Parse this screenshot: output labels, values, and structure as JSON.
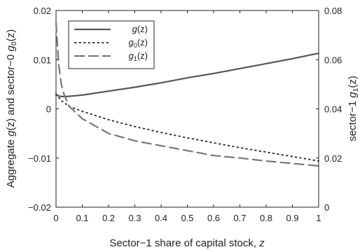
{
  "chart_data": {
    "type": "line",
    "xlabel": "Sector−1 share of capital stock, z",
    "ylabel_left": "Aggregate g(z) and sector−0 g0(z)",
    "ylabel_right": "sector−1 g1(z)",
    "xlim": [
      0,
      1
    ],
    "ylim_left": [
      -0.02,
      0.02
    ],
    "ylim_right": [
      0,
      0.08
    ],
    "grid": false,
    "legend_position": "top-left",
    "x_ticks": [
      "0",
      "0.1",
      "0.2",
      "0.3",
      "0.4",
      "0.5",
      "0.6",
      "0.7",
      "0.8",
      "0.9",
      "1"
    ],
    "y_ticks_left": [
      "−0.02",
      "−0.01",
      "0",
      "0.01",
      "0.02"
    ],
    "y_ticks_right": [
      "0",
      "0.02",
      "0.04",
      "0.06",
      "0.08"
    ],
    "series": [
      {
        "name": "g(z)",
        "axis": "left",
        "style": "solid",
        "color": "#555555",
        "x": [
          0,
          0.02,
          0.04,
          0.06,
          0.1,
          0.2,
          0.3,
          0.4,
          0.5,
          0.6,
          0.7,
          0.8,
          0.9,
          1.0
        ],
        "y": [
          0.0028,
          0.0025,
          0.0025,
          0.0026,
          0.0028,
          0.0036,
          0.0044,
          0.0053,
          0.0063,
          0.0072,
          0.0082,
          0.0092,
          0.0102,
          0.0113
        ]
      },
      {
        "name": "g0(z)",
        "axis": "left",
        "style": "dotted",
        "color": "#333333",
        "x": [
          0,
          0.02,
          0.05,
          0.1,
          0.2,
          0.3,
          0.4,
          0.5,
          0.6,
          0.7,
          0.8,
          0.9,
          1.0
        ],
        "y": [
          0.003,
          0.0017,
          0.0005,
          -0.0005,
          -0.0022,
          -0.0036,
          -0.0048,
          -0.0059,
          -0.0069,
          -0.0079,
          -0.0088,
          -0.0097,
          -0.0106
        ]
      },
      {
        "name": "g1(z)",
        "axis": "right",
        "style": "dashed",
        "color": "#777777",
        "x": [
          0,
          0.01,
          0.02,
          0.03,
          0.05,
          0.1,
          0.2,
          0.3,
          0.4,
          0.5,
          0.6,
          0.7,
          0.8,
          0.9,
          1.0
        ],
        "y": [
          0.075,
          0.058,
          0.05,
          0.046,
          0.041,
          0.036,
          0.03,
          0.027,
          0.025,
          0.023,
          0.021,
          0.02,
          0.0188,
          0.0178,
          0.0168
        ]
      }
    ]
  }
}
